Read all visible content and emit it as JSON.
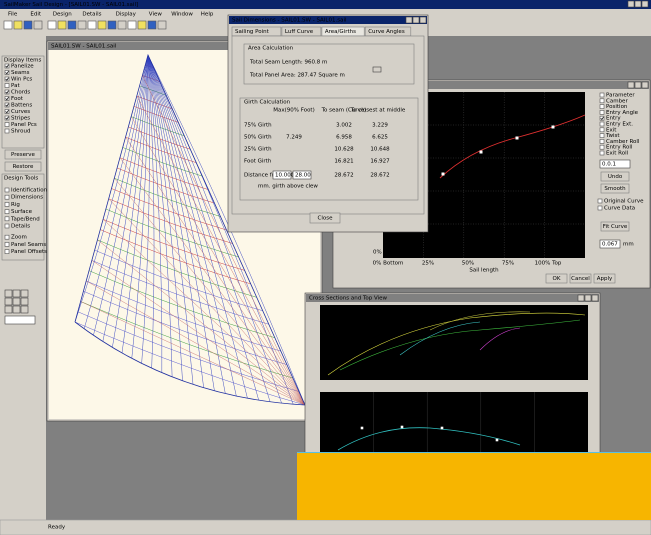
{
  "app_title": "SailMaker Sail Design - [SAIL01.SW - SAIL01.sail]",
  "menu": [
    "File",
    "Edit",
    "Design",
    "Details",
    "Display",
    "View",
    "Window",
    "Help"
  ],
  "display_items": {
    "title": "Display Items",
    "items": [
      "Panelize",
      "Seams",
      "Win Pcs",
      "Pat",
      "Chords",
      "Foot",
      "Battens",
      "Curves",
      "Stripes",
      "Panel Pcs",
      "Shroud"
    ],
    "buttons": [
      "Preserve",
      "Restore"
    ]
  },
  "design_tools": {
    "title": "Design Tools",
    "items": [
      "Identification",
      "Dimensions",
      "Rig",
      "Surface",
      "Tape/Bend",
      "Details",
      "Zoom",
      "Panel Seams",
      "Panel Offsets"
    ]
  },
  "sail_window": {
    "title": "SAIL01.SW - SAIL01.sail"
  },
  "dialog": {
    "title": "Sail Dimensions - SAIL01.SW - SAIL01.sail",
    "tabs": [
      "Sailing Point",
      "Luff Curve",
      "Area/Girths",
      "Curve Angles"
    ],
    "area": {
      "title": "Area Calculation",
      "seam_length": "Total Seam Length: 960.8 m",
      "panel_area": "Total Panel Area: 287.47 Square m"
    },
    "girth": {
      "title": "Girth Calculation",
      "headers": [
        "Max(90% Foot)",
        "To seam (Curve)",
        "To closest at middle"
      ],
      "rows": [
        [
          "75% Girth",
          "",
          "3.002",
          "3.229"
        ],
        [
          "50% Girth",
          "7.249",
          "6.958",
          "6.625"
        ],
        [
          "25% Girth",
          "",
          "10.628",
          "10.648"
        ],
        [
          "Foot Girth",
          "",
          "16.821",
          "16.927"
        ],
        [
          "Distance from head",
          "",
          "28.672",
          "28.672"
        ]
      ],
      "inputs": [
        "10.000",
        "28.00"
      ],
      "unit_note": "mm. girth above clew"
    },
    "close": "Close"
  },
  "graph_window": {
    "title": "Sail Shape Parameters",
    "y_label": "0%",
    "x_labels": [
      "0% Bottom",
      "25%",
      "50%",
      "75%",
      "100% Top"
    ],
    "x_title": "Sail length",
    "parameters": [
      "Parameter",
      "Camber",
      "Position",
      "Entry Angle",
      "Entry",
      "Entry Ext.",
      "Exit",
      "Twist",
      "Camber Roll",
      "Entry Roll",
      "Exit Roll"
    ],
    "field": "0.0.1",
    "undo": "Undo",
    "smooth": "Smooth",
    "options": [
      "Original Curve",
      "Curve Data"
    ],
    "fit": "Fit Curve",
    "field2": "0.067",
    "field2_unit": "mm",
    "buttons": [
      "OK",
      "Cancel",
      "Apply"
    ]
  },
  "cross_window": {
    "title": "Cross Sections and Top View"
  },
  "status": "Ready"
}
